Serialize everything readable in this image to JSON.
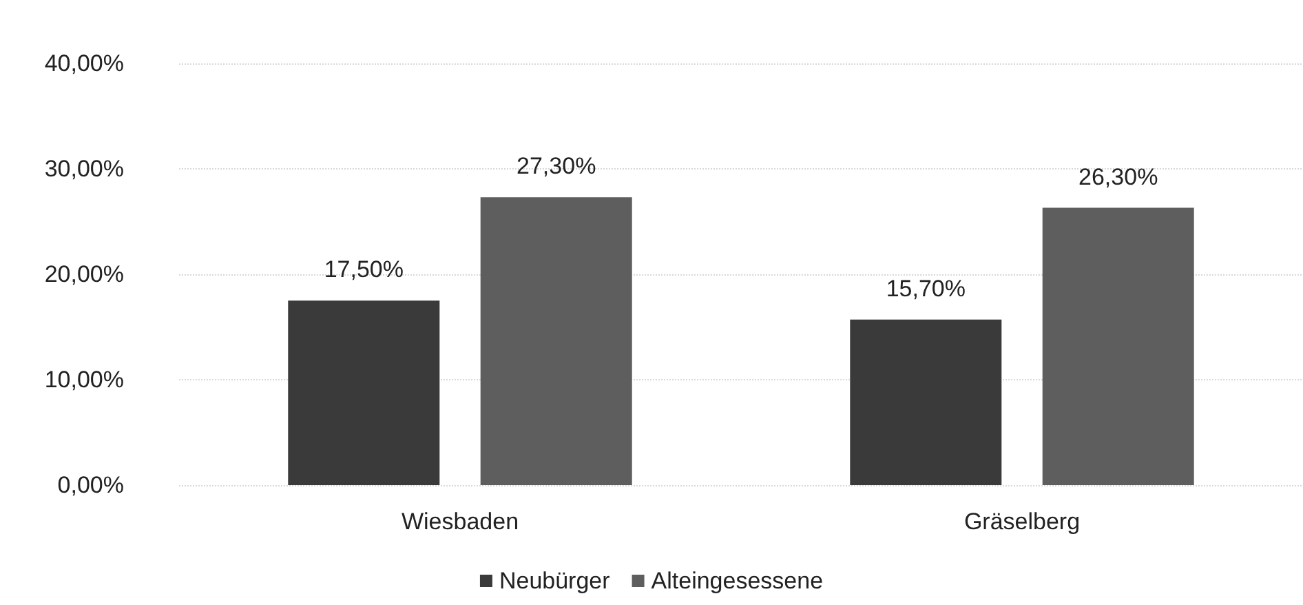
{
  "chart_data": {
    "type": "bar",
    "categories": [
      "Wiesbaden",
      "Gräselberg"
    ],
    "series": [
      {
        "name": "Neubürger",
        "color": "#3a3a3a",
        "values": [
          17.5,
          15.7
        ],
        "value_labels": [
          "17,50%",
          "15,70%"
        ]
      },
      {
        "name": "Alteingesessene",
        "color": "#5e5e5e",
        "values": [
          27.3,
          26.3
        ],
        "value_labels": [
          "27,30%",
          "26,30%"
        ]
      }
    ],
    "ylim": [
      0,
      40
    ],
    "yticks": [
      {
        "value": 0,
        "label": "0,00%"
      },
      {
        "value": 10,
        "label": "10,00%"
      },
      {
        "value": 20,
        "label": "20,00%"
      },
      {
        "value": 30,
        "label": "30,00%"
      },
      {
        "value": 40,
        "label": "40,00%"
      }
    ],
    "grid": "y",
    "legend": "bottom"
  }
}
